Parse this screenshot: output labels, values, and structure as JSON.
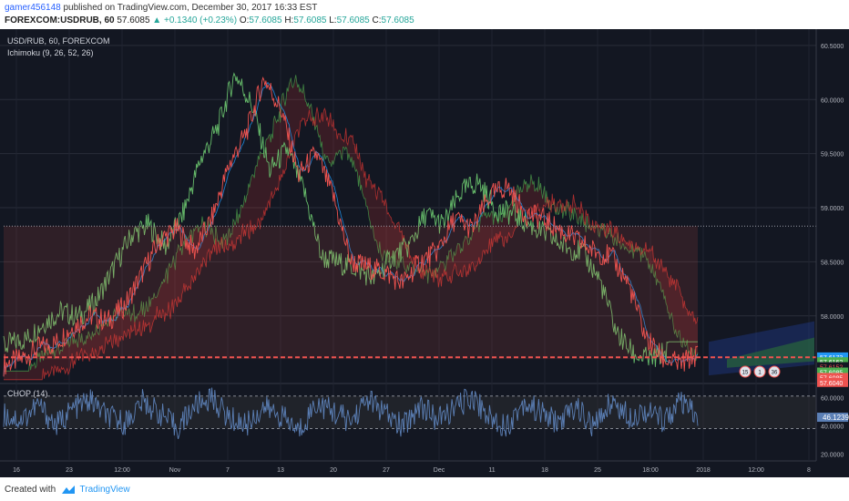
{
  "header": {
    "user": "gamer456148",
    "published": "published on TradingView.com, December 30, 2017 16:33 EST",
    "symbol": "FOREXCOM:USDRUB, 60",
    "last": "57.6085",
    "change": "▲ +0.1340 (+0.23%)",
    "o_label": "O:",
    "o": "57.6085",
    "h_label": "H:",
    "h": "57.6085",
    "l_label": "L:",
    "l": "57.6085",
    "c_label": "C:",
    "c": "57.6085"
  },
  "legend": {
    "pair": "USD/RUB, 60, FOREXCOM",
    "indicator": "Ichimoku (9, 26, 52, 26)",
    "osc": "CHOP (14)"
  },
  "colors": {
    "background": "#131722",
    "price_line": "#ef5350",
    "conversion": "#2196f3",
    "base": "#ef5350",
    "lagging": "#66bb6a",
    "span_a": "#4caf50",
    "span_b": "#e53935",
    "chop": "#5b7fb5"
  },
  "chart_data": [
    {
      "type": "line",
      "title": "USD/RUB, 60, FOREXCOM",
      "ylim": [
        57.4,
        60.6
      ],
      "yticks": [
        "60.5000",
        "60.0000",
        "59.5000",
        "59.0000",
        "58.5000",
        "58.0000"
      ],
      "xticks": [
        "16",
        "23",
        "12:00",
        "Nov",
        "7",
        "13",
        "20",
        "27",
        "Dec",
        "11",
        "18",
        "25",
        "18:00",
        "2018",
        "12:00",
        "8"
      ],
      "series": [
        {
          "values": [
            57.55,
            57.6,
            57.7,
            57.75,
            57.9,
            58.0,
            57.95,
            58.1,
            58.4,
            58.7,
            58.8,
            58.6,
            58.9,
            59.4,
            59.7,
            60.2,
            59.9,
            59.3,
            59.5,
            59.1,
            58.5,
            58.45,
            58.4,
            58.3,
            58.5,
            58.6,
            58.9,
            58.8,
            59.1,
            59.2,
            58.95,
            58.9,
            58.8,
            58.7,
            58.6,
            58.55,
            58.3,
            57.8,
            57.6,
            57.55,
            57.65
          ]
        }
      ],
      "price_labels": [
        "57.6173",
        "57.6162",
        "57.6152",
        "57.6085",
        "57.6085",
        "57.6040"
      ]
    },
    {
      "type": "line",
      "title": "CHOP (14)",
      "ylim": [
        15,
        68
      ],
      "yticks": [
        "60.0000",
        "40.0000",
        "20.0000"
      ],
      "last_value": "46.1239",
      "series": [
        {
          "values": [
            48,
            44,
            55,
            40,
            52,
            58,
            46,
            42,
            57,
            49,
            38,
            54,
            60,
            45,
            41,
            53,
            47,
            36,
            56,
            50,
            43,
            59,
            48,
            39,
            55,
            44,
            52,
            61,
            46,
            40,
            57,
            49,
            42,
            54,
            38,
            58,
            47,
            51,
            44,
            56,
            46
          ]
        }
      ]
    }
  ],
  "events": [
    "15",
    "1",
    "36"
  ],
  "footer": {
    "created": "Created with",
    "brand": "TradingView"
  }
}
